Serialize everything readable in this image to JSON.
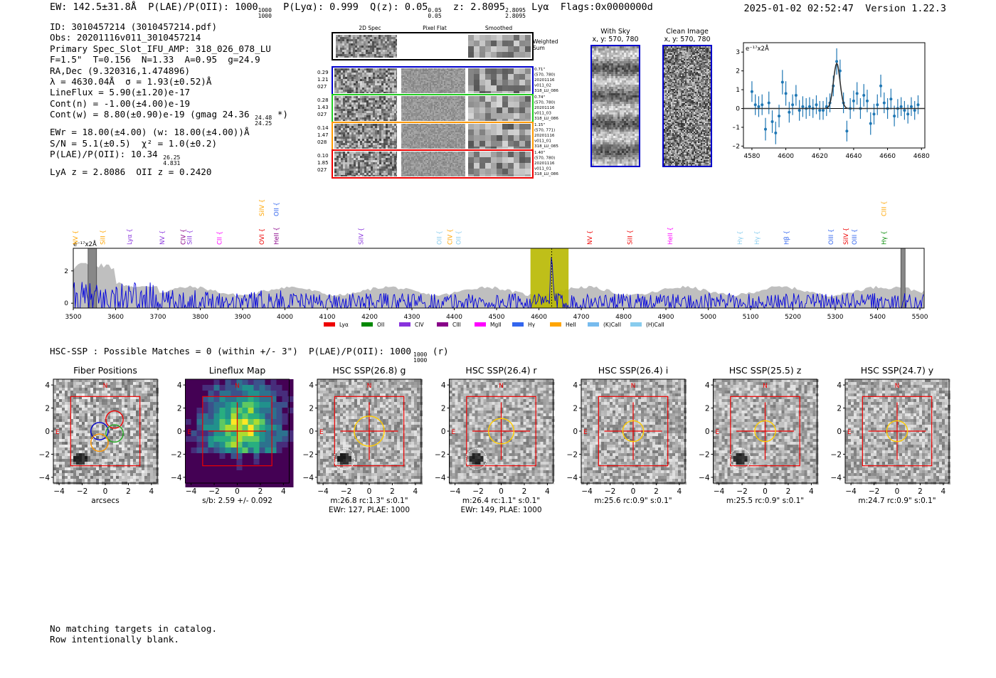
{
  "header": {
    "ew": "EW: 142.5±31.8Å",
    "plae_label": "P(LAE)/P(OII): 1000",
    "plae_hi": "1000",
    "plae_lo": "1000",
    "plya": "P(Lyα): 0.999",
    "qz": "Q(z): 0.05",
    "qz_hi": "0.05",
    "qz_lo": "0.05",
    "z": "z: 2.8095",
    "z_hi": "2.8095",
    "z_lo": "2.8095",
    "line": "Lyα",
    "flags": "Flags:0x0000000d",
    "timestamp": "2025-01-02 02:52:47",
    "version": "Version 1.22.3"
  },
  "info": {
    "id": "ID: 3010457214 (3010457214.pdf)",
    "obs": "Obs: 20201116v011_3010457214",
    "primary": "Primary Spec_Slot_IFU_AMP: 318_026_078_LU",
    "params": "F=1.5\"  T=0.156  N=1.33  A=0.95  g=24.9",
    "radec": "RA,Dec (9.320316,1.474896)",
    "lambda": "λ = 4630.04Å  σ = 1.93(±0.52)Å",
    "lineflux": "LineFlux = 5.90(±1.20)e-17",
    "contn": "Cont(n) = -1.00(±4.00)e-19",
    "contw": "Cont(w) = 8.80(±0.90)e-19 (gmag 24.36",
    "gmag_hi": "24.48",
    "gmag_lo": "24.25",
    "contw_end": "*)",
    "ewr": "EWr = 18.00(±4.00) (w: 18.00(±4.00))Å",
    "sn": "S/N = 5.1(±0.5)  χ² = 1.0(±0.2)",
    "plae": "P(LAE)/P(OII): 10.34",
    "plae_hi": "26.25",
    "plae_lo": "4.831",
    "lyaz": "LyA z = 2.8086  OII z = 0.2420"
  },
  "cutouts": {
    "col_labels": [
      "2D Spec",
      "Pixel Flat",
      "Smoothed"
    ],
    "weighted_label": "Weighted Sum",
    "rows": [
      {
        "left": [
          "0.29",
          "1.21",
          "027"
        ],
        "right": [
          "0.71\"",
          "(570, 780)",
          "20201116",
          "v011_02",
          "318_LU_086"
        ],
        "color": "#0000cc"
      },
      {
        "left": [
          "0.28",
          "1.43",
          "027"
        ],
        "right": [
          "0.74\"",
          "(570, 780)",
          "20201116",
          "v011_03",
          "318_LU_086"
        ],
        "color": "#22cc22"
      },
      {
        "left": [
          "0.14",
          "1.47",
          "028"
        ],
        "right": [
          "1.15\"",
          "(570, 771)",
          "20201116",
          "v011_01",
          "318_LU_085"
        ],
        "color": "#ff9900"
      },
      {
        "left": [
          "0.10",
          "1.85",
          "027"
        ],
        "right": [
          "1.40\"",
          "(570, 780)",
          "20201116",
          "v011_01",
          "318_LU_086"
        ],
        "color": "#ee0000"
      }
    ],
    "with_sky": "With Sky",
    "with_sky_xy": "x, y: 570, 780",
    "clean": "Clean Image",
    "clean_xy": "x, y: 570, 780"
  },
  "chart_data": [
    {
      "type": "scatter",
      "title": "",
      "ylabel_note": "e⁻¹⁷x2Å",
      "xlim": [
        4575,
        4682
      ],
      "ylim": [
        -2.1,
        3.5
      ],
      "xticks": [
        4580,
        4600,
        4620,
        4640,
        4660,
        4680
      ],
      "yticks": [
        -2,
        -1,
        0,
        1,
        2,
        3
      ],
      "x": [
        4580,
        4582,
        4584,
        4586,
        4588,
        4590,
        4592,
        4594,
        4596,
        4598,
        4600,
        4602,
        4604,
        4606,
        4608,
        4610,
        4612,
        4614,
        4616,
        4618,
        4620,
        4622,
        4624,
        4626,
        4628,
        4630,
        4632,
        4634,
        4636,
        4638,
        4640,
        4642,
        4644,
        4646,
        4648,
        4650,
        4652,
        4654,
        4656,
        4658,
        4660,
        4662,
        4664,
        4666,
        4668,
        4670,
        4672,
        4674,
        4676,
        4678
      ],
      "y": [
        0.9,
        0.2,
        0.1,
        0.2,
        -1.1,
        0.3,
        -0.7,
        -1.3,
        -0.4,
        1.4,
        0.8,
        -0.2,
        0.2,
        0.7,
        -0.1,
        0.1,
        0.0,
        0.1,
        0.0,
        0.2,
        -0.1,
        -0.1,
        0.1,
        0.3,
        1.2,
        2.5,
        2.0,
        0.3,
        -1.2,
        0.0,
        0.4,
        0.8,
        0.0,
        0.7,
        0.4,
        -0.8,
        -0.3,
        0.2,
        1.2,
        0.3,
        0.0,
        0.5,
        -0.4,
        0.0,
        0.1,
        -0.1,
        -0.3,
        0.1,
        -0.1,
        0.2
      ],
      "err": [
        0.55,
        0.55,
        0.55,
        0.55,
        0.6,
        0.6,
        0.6,
        0.6,
        0.6,
        0.65,
        0.65,
        0.55,
        0.55,
        0.55,
        0.55,
        0.55,
        0.55,
        0.5,
        0.5,
        0.5,
        0.5,
        0.5,
        0.5,
        0.5,
        0.55,
        0.7,
        0.6,
        0.55,
        0.55,
        0.55,
        0.55,
        0.6,
        0.55,
        0.6,
        0.6,
        0.6,
        0.55,
        0.55,
        0.6,
        0.55,
        0.55,
        0.55,
        0.55,
        0.5,
        0.5,
        0.5,
        0.5,
        0.5,
        0.5,
        0.5
      ],
      "fit_center": 4630.04,
      "fit_sigma": 1.93,
      "fit_amp": 2.4
    },
    {
      "type": "line",
      "title": "",
      "ylabel_note": "e⁻¹⁷x2Å",
      "xlim": [
        3500,
        5510
      ],
      "ylim": [
        -0.3,
        3.4
      ],
      "xticks": [
        3500,
        3600,
        3700,
        3800,
        3900,
        4000,
        4100,
        4200,
        4300,
        4400,
        4500,
        4600,
        4700,
        4800,
        4900,
        5000,
        5100,
        5200,
        5300,
        5400,
        5500
      ],
      "yticks": [
        0,
        2
      ],
      "highlight_range": [
        4580,
        4670
      ],
      "highlight_line": 4630,
      "masked": [
        [
          3535,
          3555
        ],
        [
          5455,
          5465
        ]
      ],
      "legend": [
        {
          "label": "Lyα",
          "color": "#ee0000"
        },
        {
          "label": "OII",
          "color": "#008800"
        },
        {
          "label": "CIV",
          "color": "#8833dd"
        },
        {
          "label": "CIII",
          "color": "#880088"
        },
        {
          "label": "MgII",
          "color": "#ff00ff"
        },
        {
          "label": "Hγ",
          "color": "#3366ee"
        },
        {
          "label": "HeII",
          "color": "#ffa500"
        },
        {
          "label": "(K)CaII",
          "color": "#77bbee"
        },
        {
          "label": "(H)CaII",
          "color": "#88ccee"
        }
      ],
      "lines": [
        {
          "label": "NV",
          "x": 3505,
          "row": 2,
          "color": "#ffa500"
        },
        {
          "label": "SiII",
          "x": 3570,
          "row": 2,
          "color": "#ffa500"
        },
        {
          "label": "Lyα",
          "x": 3633,
          "row": 2,
          "color": "#8833dd"
        },
        {
          "label": "NV",
          "x": 3710,
          "row": 2,
          "color": "#8833dd"
        },
        {
          "label": "CIV",
          "x": 3760,
          "row": 2,
          "color": "#880088"
        },
        {
          "label": "SiII",
          "x": 3775,
          "row": 2,
          "color": "#8833dd"
        },
        {
          "label": "CII",
          "x": 3845,
          "row": 2,
          "color": "#ff00ff"
        },
        {
          "label": "SiIV",
          "x": 3945,
          "row": 1,
          "color": "#ffa500"
        },
        {
          "label": "OII",
          "x": 3980,
          "row": 1,
          "color": "#3366ee"
        },
        {
          "label": "OVI",
          "x": 3945,
          "row": 2,
          "color": "#ee0000"
        },
        {
          "label": "HeII",
          "x": 3980,
          "row": 2,
          "color": "#880088"
        },
        {
          "label": "SiIV",
          "x": 4180,
          "row": 2,
          "color": "#8833dd"
        },
        {
          "label": "OII",
          "x": 4365,
          "row": 2,
          "color": "#88ccee"
        },
        {
          "label": "CIV",
          "x": 4390,
          "row": 2,
          "color": "#ffa500"
        },
        {
          "label": "OII",
          "x": 4410,
          "row": 2,
          "color": "#88ccee"
        },
        {
          "label": "NV",
          "x": 4720,
          "row": 2,
          "color": "#ee0000"
        },
        {
          "label": "SiII",
          "x": 4815,
          "row": 2,
          "color": "#ee0000"
        },
        {
          "label": "HeII",
          "x": 4910,
          "row": 2,
          "color": "#ff00ff"
        },
        {
          "label": "Hγ",
          "x": 5075,
          "row": 2,
          "color": "#88ccee"
        },
        {
          "label": "Hγ",
          "x": 5115,
          "row": 2,
          "color": "#88ccee"
        },
        {
          "label": "Hβ",
          "x": 5185,
          "row": 2,
          "color": "#3366ee"
        },
        {
          "label": "OIII",
          "x": 5290,
          "row": 2,
          "color": "#3366ee"
        },
        {
          "label": "SiIV",
          "x": 5325,
          "row": 2,
          "color": "#ee0000"
        },
        {
          "label": "OIII",
          "x": 5345,
          "row": 2,
          "color": "#3366ee"
        },
        {
          "label": "CIII",
          "x": 5415,
          "row": 1,
          "color": "#ffa500"
        },
        {
          "label": "Hγ",
          "x": 5415,
          "row": 2,
          "color": "#008800"
        }
      ]
    }
  ],
  "hsc": {
    "summary": "HSC-SSP : Possible Matches = 0 (within +/- 3\")  P(LAE)/P(OII): 1000",
    "summary_hi": "1000",
    "summary_lo": "1000",
    "summary_end": "(r)",
    "axis_ticks": [
      "4",
      "2",
      "0",
      "−2",
      "−4"
    ],
    "x_ticks": [
      "−4",
      "−2",
      "0",
      "2",
      "4"
    ],
    "panels": [
      {
        "title": "Fiber Positions",
        "cap1": "arcsecs",
        "cap2": ""
      },
      {
        "title": "Lineflux Map",
        "cap1": "s/b: 2.59 +/- 0.092",
        "cap2": ""
      },
      {
        "title": "HSC SSP(26.8) g",
        "cap1": "m:26.8 rc:1.3\"  s:0.1\"",
        "cap2": "EWr: 127, PLAE: 1000"
      },
      {
        "title": "HSC SSP(26.4) r",
        "cap1": "m:26.4 rc:1.1\"  s:0.1\"",
        "cap2": "EWr: 149, PLAE: 1000"
      },
      {
        "title": "HSC SSP(26.4) i",
        "cap1": "m:25.6 rc:0.9\"  s:0.1\"",
        "cap2": ""
      },
      {
        "title": "HSC SSP(25.5) z",
        "cap1": "m:25.5 rc:0.9\"  s:0.1\"",
        "cap2": ""
      },
      {
        "title": "HSC SSP(24.7) y",
        "cap1": "m:24.7 rc:0.9\"  s:0.1\"",
        "cap2": ""
      }
    ],
    "compass_n": "N",
    "compass_e": "E"
  },
  "footer": {
    "line1": "No matching targets in catalog.",
    "line2": "Row intentionally blank."
  }
}
